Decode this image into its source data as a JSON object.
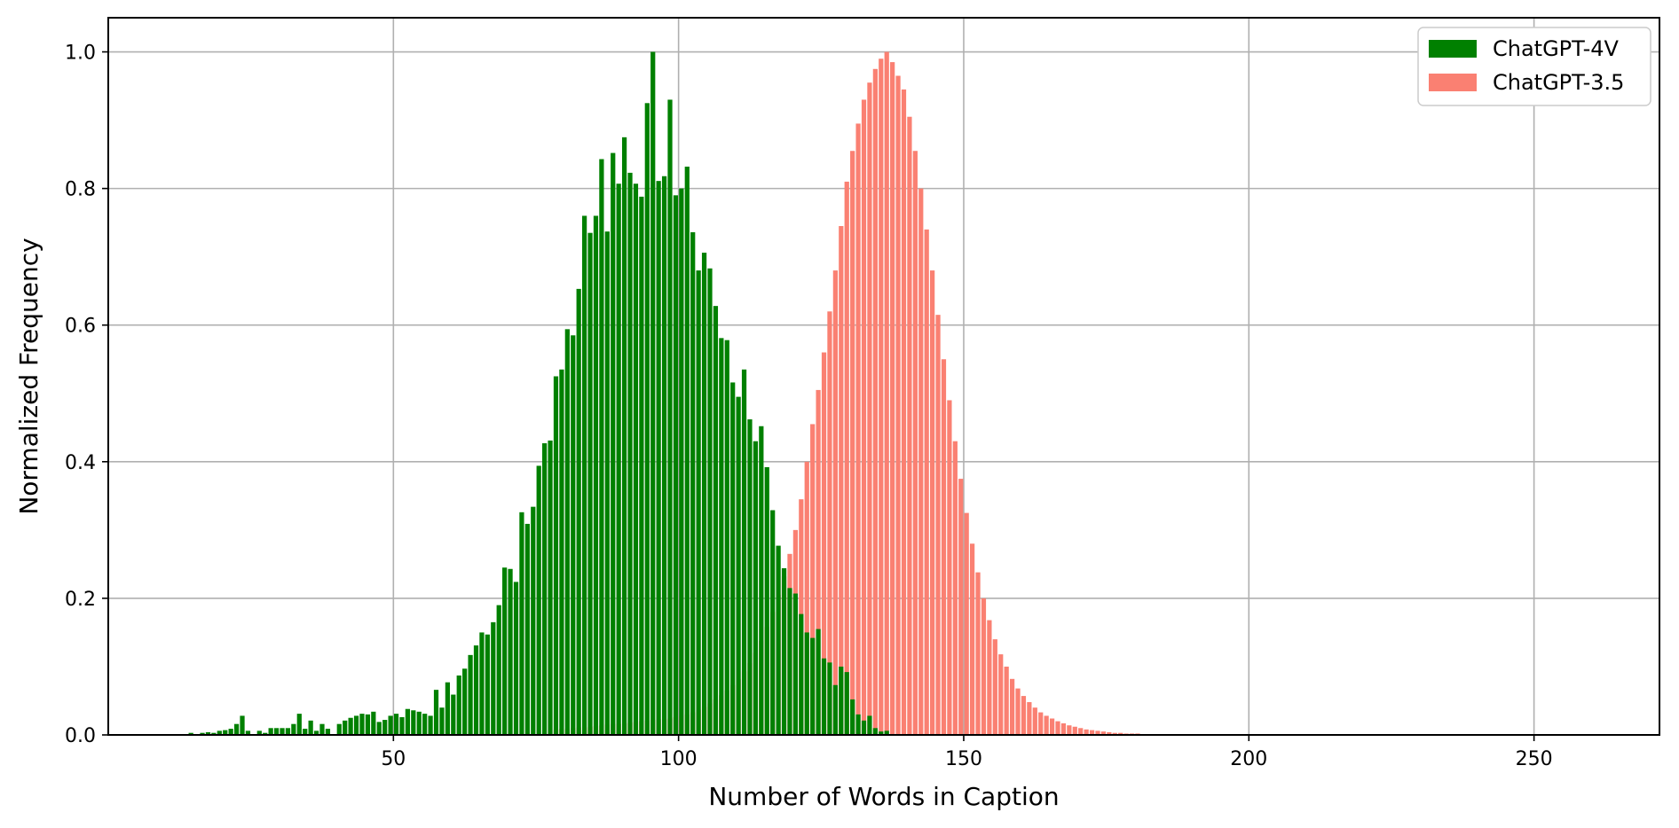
{
  "chart_data": {
    "type": "bar",
    "title": "",
    "xlabel": "Number of Words in Caption",
    "ylabel": "Normalized Frequency",
    "xlim": [
      0,
      272
    ],
    "ylim": [
      0,
      1.05
    ],
    "xticks": [
      50,
      100,
      150,
      200,
      250
    ],
    "yticks": [
      0.0,
      0.2,
      0.4,
      0.6,
      0.8,
      1.0
    ],
    "xtick_labels": [
      "50",
      "100",
      "150",
      "200",
      "250"
    ],
    "ytick_labels": [
      "0.0",
      "0.2",
      "0.4",
      "0.6",
      "0.8",
      "1.0"
    ],
    "grid": true,
    "legend_position": "top-right",
    "series": [
      {
        "name": "ChatGPT-3.5",
        "color": "#fa8072",
        "x_start": 78,
        "bin_width": 1,
        "values": [
          0.008,
          0.009,
          0.009,
          0.01,
          0.011,
          0.011,
          0.012,
          0.013,
          0.014,
          0.015,
          0.016,
          0.016,
          0.017,
          0.018,
          0.019,
          0.02,
          0.021,
          0.022,
          0.023,
          0.023,
          0.024,
          0.026,
          0.028,
          0.03,
          0.033,
          0.037,
          0.041,
          0.046,
          0.052,
          0.058,
          0.065,
          0.073,
          0.082,
          0.093,
          0.105,
          0.12,
          0.138,
          0.158,
          0.18,
          0.205,
          0.232,
          0.265,
          0.3,
          0.345,
          0.4,
          0.455,
          0.505,
          0.56,
          0.62,
          0.68,
          0.745,
          0.81,
          0.855,
          0.895,
          0.93,
          0.955,
          0.975,
          0.99,
          1.0,
          0.985,
          0.965,
          0.945,
          0.905,
          0.855,
          0.8,
          0.74,
          0.68,
          0.615,
          0.55,
          0.49,
          0.43,
          0.375,
          0.325,
          0.28,
          0.238,
          0.2,
          0.168,
          0.14,
          0.118,
          0.1,
          0.082,
          0.068,
          0.057,
          0.048,
          0.04,
          0.033,
          0.028,
          0.024,
          0.02,
          0.017,
          0.014,
          0.012,
          0.01,
          0.008,
          0.007,
          0.006,
          0.005,
          0.004,
          0.003,
          0.003,
          0.002,
          0.002,
          0.002,
          0.001,
          0.001,
          0.001,
          0.001,
          0.001,
          0.001,
          0.001,
          0.0008,
          0.0007,
          0.0006,
          0.0005,
          0.0004,
          0.0004,
          0.0003,
          0.0003,
          0.0003,
          0.0002,
          0.0002,
          0.0002,
          0.0002,
          0.0001,
          0.0001,
          0.0001,
          0.0001,
          0.0001,
          0.0001,
          0.0001,
          0.0001,
          0.0001,
          0.0001,
          0.0001,
          0.0001,
          0.0001,
          0.0001,
          0.0001,
          0.0001,
          0.0001
        ]
      },
      {
        "name": "ChatGPT-4V",
        "color": "#008000",
        "x_start": 12,
        "bin_width": 1,
        "values": [
          0.0,
          0.0,
          0.003,
          0.0,
          0.003,
          0.004,
          0.003,
          0.006,
          0.007,
          0.009,
          0.016,
          0.028,
          0.006,
          0.0,
          0.006,
          0.003,
          0.01,
          0.01,
          0.01,
          0.01,
          0.016,
          0.031,
          0.009,
          0.021,
          0.006,
          0.016,
          0.009,
          0.0,
          0.016,
          0.021,
          0.025,
          0.028,
          0.031,
          0.03,
          0.034,
          0.019,
          0.022,
          0.028,
          0.031,
          0.026,
          0.038,
          0.036,
          0.034,
          0.031,
          0.028,
          0.066,
          0.04,
          0.077,
          0.059,
          0.087,
          0.097,
          0.117,
          0.131,
          0.15,
          0.147,
          0.165,
          0.19,
          0.245,
          0.243,
          0.224,
          0.326,
          0.309,
          0.334,
          0.394,
          0.427,
          0.431,
          0.525,
          0.535,
          0.594,
          0.585,
          0.653,
          0.76,
          0.735,
          0.76,
          0.843,
          0.737,
          0.852,
          0.807,
          0.875,
          0.823,
          0.807,
          0.788,
          0.925,
          1.0,
          0.811,
          0.818,
          0.93,
          0.79,
          0.8,
          0.832,
          0.736,
          0.68,
          0.706,
          0.683,
          0.628,
          0.581,
          0.578,
          0.516,
          0.495,
          0.535,
          0.462,
          0.43,
          0.452,
          0.392,
          0.329,
          0.277,
          0.244,
          0.215,
          0.207,
          0.177,
          0.15,
          0.142,
          0.155,
          0.112,
          0.106,
          0.073,
          0.1,
          0.092,
          0.052,
          0.03,
          0.021,
          0.028,
          0.01,
          0.005,
          0.006,
          0.0
        ]
      }
    ]
  }
}
